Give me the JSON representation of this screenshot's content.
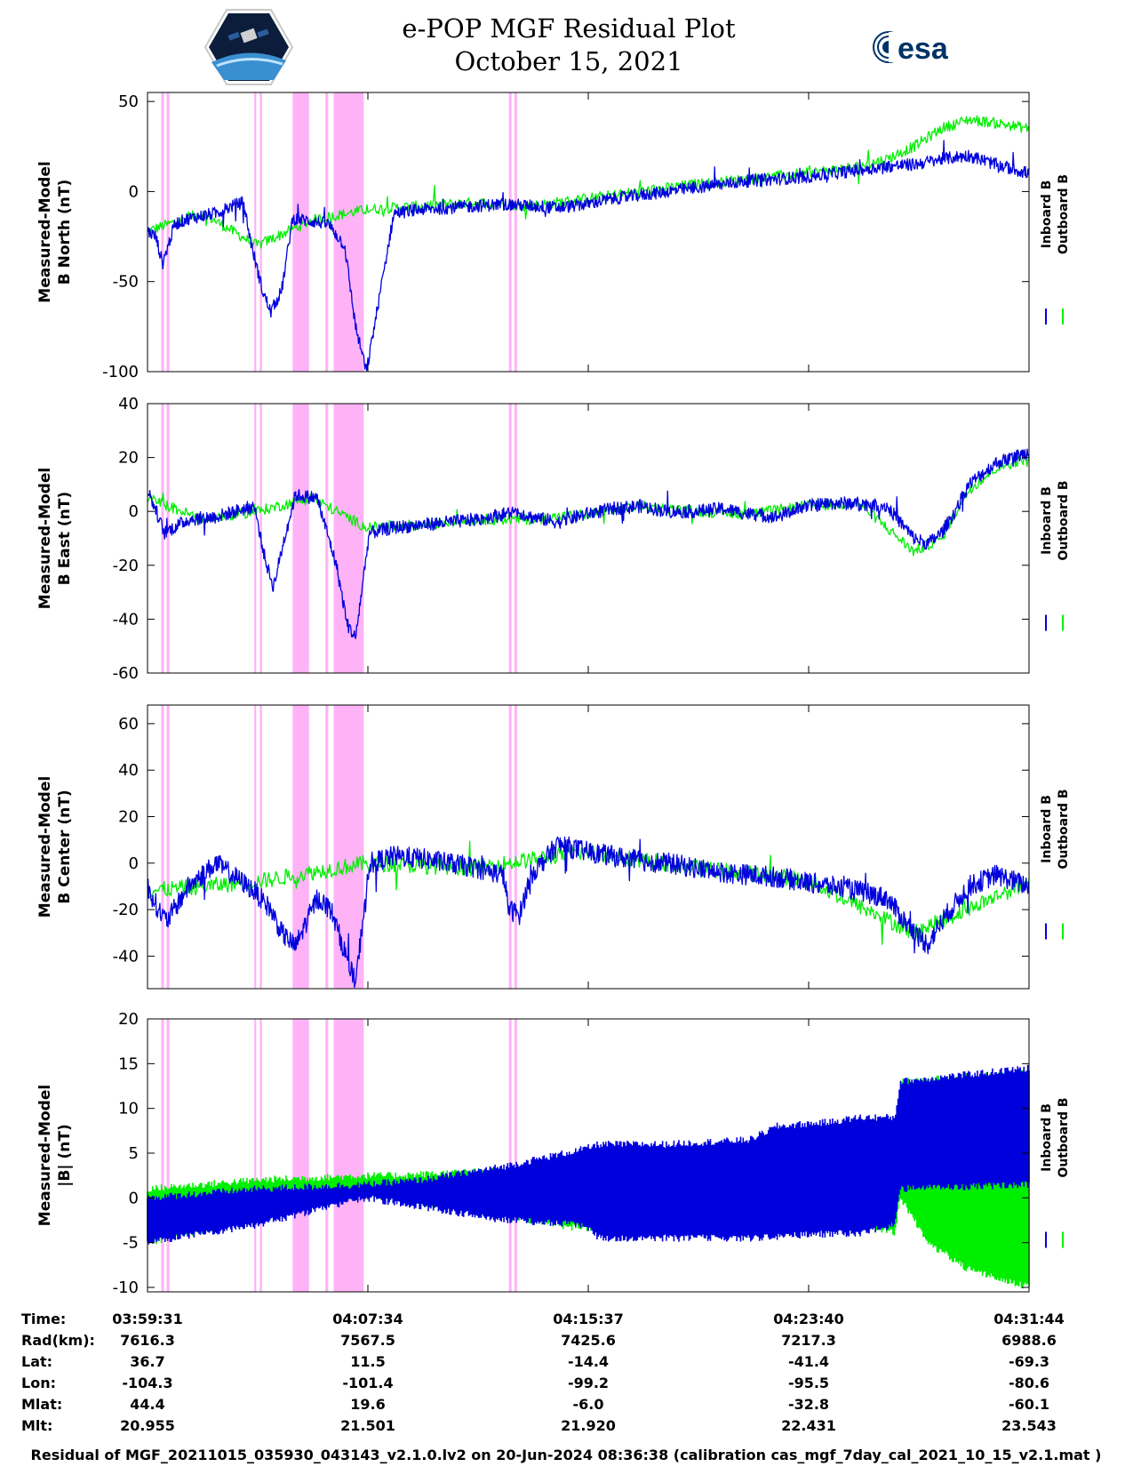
{
  "header": {
    "title_line1": "e-POP MGF Residual Plot",
    "title_line2": "October 15, 2021",
    "logo_left": "cassiope-mission-logo",
    "logo_right_text": "esa"
  },
  "colors": {
    "inboard": "#0000dd",
    "outboard": "#00ee00",
    "shade": "#ffb3f7",
    "axis": "#000000",
    "esa_blue": "#003366"
  },
  "chart_data": [
    {
      "type": "line",
      "ylabel_line1": "Measured-Model",
      "ylabel_line2": "B North (nT)",
      "ylim": [
        -100,
        55
      ],
      "yticks": [
        50,
        0,
        -50,
        -100
      ],
      "legend": [
        "Inboard B",
        "Outboard B"
      ],
      "series": [
        {
          "name": "Inboard B",
          "x": [
            0,
            0.3,
            0.55,
            1.0,
            1.5,
            2.5,
            3.1,
            3.5,
            3.8,
            4.2,
            4.5,
            4.9,
            5.3,
            5.8,
            6.6,
            7.2,
            7.6,
            8,
            9,
            10,
            11,
            12,
            13,
            14,
            15,
            16,
            17,
            18,
            19,
            20,
            21,
            22,
            23,
            24,
            25,
            26,
            27,
            28,
            29,
            30,
            31,
            32.2
          ],
          "y": [
            -22,
            -25,
            -40,
            -18,
            -15,
            -12,
            -8,
            -6,
            -30,
            -55,
            -67,
            -55,
            -15,
            -16,
            -18,
            -30,
            -75,
            -100,
            -12,
            -10,
            -9,
            -8,
            -7,
            -8,
            -9,
            -7,
            -4,
            -2,
            0,
            2,
            4,
            6,
            7,
            8,
            10,
            12,
            14,
            15,
            18,
            20,
            15,
            10
          ],
          "noise": 7
        },
        {
          "name": "Outboard B",
          "x": [
            0,
            2,
            4,
            6,
            8,
            10,
            12,
            14,
            16,
            18,
            20,
            22,
            24,
            26,
            27,
            28,
            29,
            30,
            31,
            32.2
          ],
          "y": [
            -22,
            -12,
            -30,
            -16,
            -10,
            -8,
            -6,
            -8,
            -4,
            0,
            4,
            7,
            10,
            14,
            18,
            25,
            35,
            40,
            38,
            35
          ],
          "noise": 6
        }
      ],
      "shaded_intervals": [
        [
          0.5,
          0.6
        ],
        [
          0.7,
          0.8
        ],
        [
          3.9,
          3.97
        ],
        [
          4.1,
          4.18
        ],
        [
          5.3,
          5.9
        ],
        [
          6.5,
          6.6
        ],
        [
          6.8,
          7.9
        ],
        [
          13.2,
          13.3
        ],
        [
          13.4,
          13.5
        ]
      ]
    },
    {
      "type": "line",
      "ylabel_line1": "Measured-Model",
      "ylabel_line2": "B East (nT)",
      "ylim": [
        -60,
        40
      ],
      "yticks": [
        40,
        20,
        0,
        -20,
        -40,
        -60
      ],
      "legend": [
        "Inboard B",
        "Outboard B"
      ],
      "series": [
        {
          "name": "Inboard B",
          "x": [
            0,
            0.4,
            0.6,
            1.5,
            2.5,
            3.2,
            3.9,
            4.3,
            4.6,
            5,
            5.4,
            6.2,
            6.9,
            7.3,
            7.6,
            8.1,
            9,
            10,
            11,
            12,
            13,
            13.5,
            14,
            15,
            16,
            17,
            18,
            19,
            20,
            21,
            22,
            23,
            24,
            25,
            26,
            27,
            28,
            28.5,
            29,
            29.5,
            30,
            31,
            32.2
          ],
          "y": [
            8,
            -2,
            -8,
            -3,
            -2,
            0,
            2,
            -18,
            -28,
            -10,
            6,
            5,
            -20,
            -42,
            -47,
            -8,
            -6,
            -5,
            -4,
            -3,
            -1,
            0,
            -2,
            -4,
            -1,
            1,
            2,
            0,
            0,
            1,
            -1,
            -2,
            2,
            3,
            3,
            2,
            -10,
            -12,
            -8,
            0,
            10,
            18,
            22
          ],
          "noise": 5
        },
        {
          "name": "Outboard B",
          "x": [
            0,
            2,
            4,
            6,
            8,
            10,
            12,
            14,
            16,
            18,
            20,
            22,
            24,
            26,
            28,
            29,
            30,
            31,
            32.2
          ],
          "y": [
            5,
            -3,
            0,
            5,
            -6,
            -5,
            -3,
            -3,
            -1,
            2,
            0,
            -1,
            2,
            3,
            -15,
            -10,
            8,
            16,
            20
          ],
          "noise": 4
        }
      ],
      "shaded_intervals": [
        [
          0.5,
          0.6
        ],
        [
          0.7,
          0.8
        ],
        [
          3.9,
          3.97
        ],
        [
          4.1,
          4.18
        ],
        [
          5.3,
          5.9
        ],
        [
          6.5,
          6.6
        ],
        [
          6.8,
          7.9
        ],
        [
          13.2,
          13.3
        ],
        [
          13.4,
          13.5
        ]
      ]
    },
    {
      "type": "line",
      "ylabel_line1": "Measured-Model",
      "ylabel_line2": "B Center (nT)",
      "ylim": [
        -54,
        68
      ],
      "yticks": [
        60,
        40,
        20,
        0,
        -20,
        -40
      ],
      "legend": [
        "Inboard B",
        "Outboard B"
      ],
      "series": [
        {
          "name": "Inboard B",
          "x": [
            0,
            0.4,
            0.7,
            1.5,
            2.5,
            3.1,
            3.9,
            4.5,
            4.9,
            5.4,
            5.7,
            6.2,
            6.7,
            7.2,
            7.6,
            8.1,
            9,
            10,
            11,
            12,
            13,
            13.2,
            13.6,
            14,
            15,
            16,
            17,
            18,
            19,
            20,
            21,
            22,
            23,
            24,
            25,
            26,
            27,
            28,
            28.5,
            29,
            30,
            31,
            32.2
          ],
          "y": [
            -10,
            -20,
            -25,
            -10,
            0,
            -5,
            -12,
            -20,
            -30,
            -36,
            -28,
            -15,
            -20,
            -38,
            -52,
            0,
            3,
            2,
            0,
            -2,
            -5,
            -20,
            -22,
            -5,
            8,
            5,
            3,
            1,
            0,
            -2,
            -4,
            -5,
            -6,
            -8,
            -10,
            -12,
            -15,
            -30,
            -35,
            -25,
            -10,
            -5,
            -10
          ],
          "noise": 9
        },
        {
          "name": "Outboard B",
          "x": [
            0,
            4,
            8,
            12,
            16,
            20,
            24,
            28,
            32.2
          ],
          "y": [
            -12,
            -8,
            0,
            -2,
            5,
            -2,
            -7,
            -30,
            -8
          ],
          "noise": 7
        }
      ],
      "shaded_intervals": [
        [
          0.5,
          0.6
        ],
        [
          0.7,
          0.8
        ],
        [
          3.9,
          3.97
        ],
        [
          4.1,
          4.18
        ],
        [
          5.3,
          5.9
        ],
        [
          6.5,
          6.6
        ],
        [
          6.8,
          7.9
        ],
        [
          13.2,
          13.3
        ],
        [
          13.4,
          13.5
        ]
      ]
    },
    {
      "type": "area",
      "ylabel_line1": "Measured-Model",
      "ylabel_line2": "|B| (nT)",
      "ylim": [
        -10.5,
        20
      ],
      "yticks": [
        20,
        15,
        10,
        5,
        0,
        -5,
        -10
      ],
      "legend": [
        "Inboard B",
        "Outboard B"
      ],
      "series": [
        {
          "name": "Outboard B upper",
          "x": [
            0,
            4,
            8,
            9,
            16,
            19,
            26,
            27.3,
            27.5,
            32.2
          ],
          "y": [
            1,
            2,
            2.5,
            2.5,
            3.5,
            4.8,
            6.5,
            6.5,
            13,
            14
          ]
        },
        {
          "name": "Outboard B lower",
          "x": [
            0,
            4,
            8,
            9,
            16,
            19,
            26,
            27.3,
            27.5,
            28.5,
            30,
            32.2
          ],
          "y": [
            -5,
            -2.5,
            0.5,
            0,
            -3.5,
            -3,
            -3,
            -4,
            0,
            -5,
            -8,
            -10
          ]
        },
        {
          "name": "Inboard B upper",
          "x": [
            0,
            4,
            8,
            10,
            13,
            16,
            16.5,
            19,
            22,
            23,
            25,
            26,
            27.3,
            27.5,
            32.2
          ],
          "y": [
            0,
            1,
            1.5,
            2,
            3.5,
            5.5,
            6,
            6,
            6.5,
            8,
            8.5,
            9,
            9,
            13,
            14.5
          ]
        },
        {
          "name": "Inboard B lower",
          "x": [
            0,
            4,
            8,
            10,
            13,
            16,
            16.5,
            19,
            22,
            23,
            25,
            26,
            27.3,
            27.5,
            32.2
          ],
          "y": [
            -5,
            -3,
            0,
            -1,
            -2.5,
            -3,
            -4.5,
            -4.5,
            -4.5,
            -4.3,
            -4,
            -4,
            -3,
            1,
            1.5
          ]
        }
      ],
      "shaded_intervals": [
        [
          0.5,
          0.6
        ],
        [
          0.7,
          0.8
        ],
        [
          3.9,
          3.97
        ],
        [
          4.1,
          4.18
        ],
        [
          5.3,
          5.9
        ],
        [
          6.5,
          6.6
        ],
        [
          6.8,
          7.9
        ],
        [
          13.2,
          13.3
        ],
        [
          13.4,
          13.5
        ]
      ]
    }
  ],
  "annotation": {
    "row_labels": [
      "Time:",
      "Rad(km):",
      "Lat:",
      "Lon:",
      "Mlat:",
      "Mlt:"
    ],
    "columns": [
      {
        "time": "03:59:31",
        "rad": "7616.3",
        "lat": "36.7",
        "lon": "-104.3",
        "mlat": "44.4",
        "mlt": "20.955"
      },
      {
        "time": "04:07:34",
        "rad": "7567.5",
        "lat": "11.5",
        "lon": "-101.4",
        "mlat": "19.6",
        "mlt": "21.501"
      },
      {
        "time": "04:15:37",
        "rad": "7425.6",
        "lat": "-14.4",
        "lon": "-99.2",
        "mlat": "-6.0",
        "mlt": "21.920"
      },
      {
        "time": "04:23:40",
        "rad": "7217.3",
        "lat": "-41.4",
        "lon": "-95.5",
        "mlat": "-32.8",
        "mlt": "22.431"
      },
      {
        "time": "04:31:44",
        "rad": "6988.6",
        "lat": "-69.3",
        "lon": "-80.6",
        "mlat": "-60.1",
        "mlt": "23.543"
      }
    ]
  },
  "footer": "Residual of MGF_20211015_035930_043143_v2.1.0.lv2 on 20-Jun-2024 08:36:38 (calibration cas_mgf_7day_cal_2021_10_15_v2.1.mat )"
}
